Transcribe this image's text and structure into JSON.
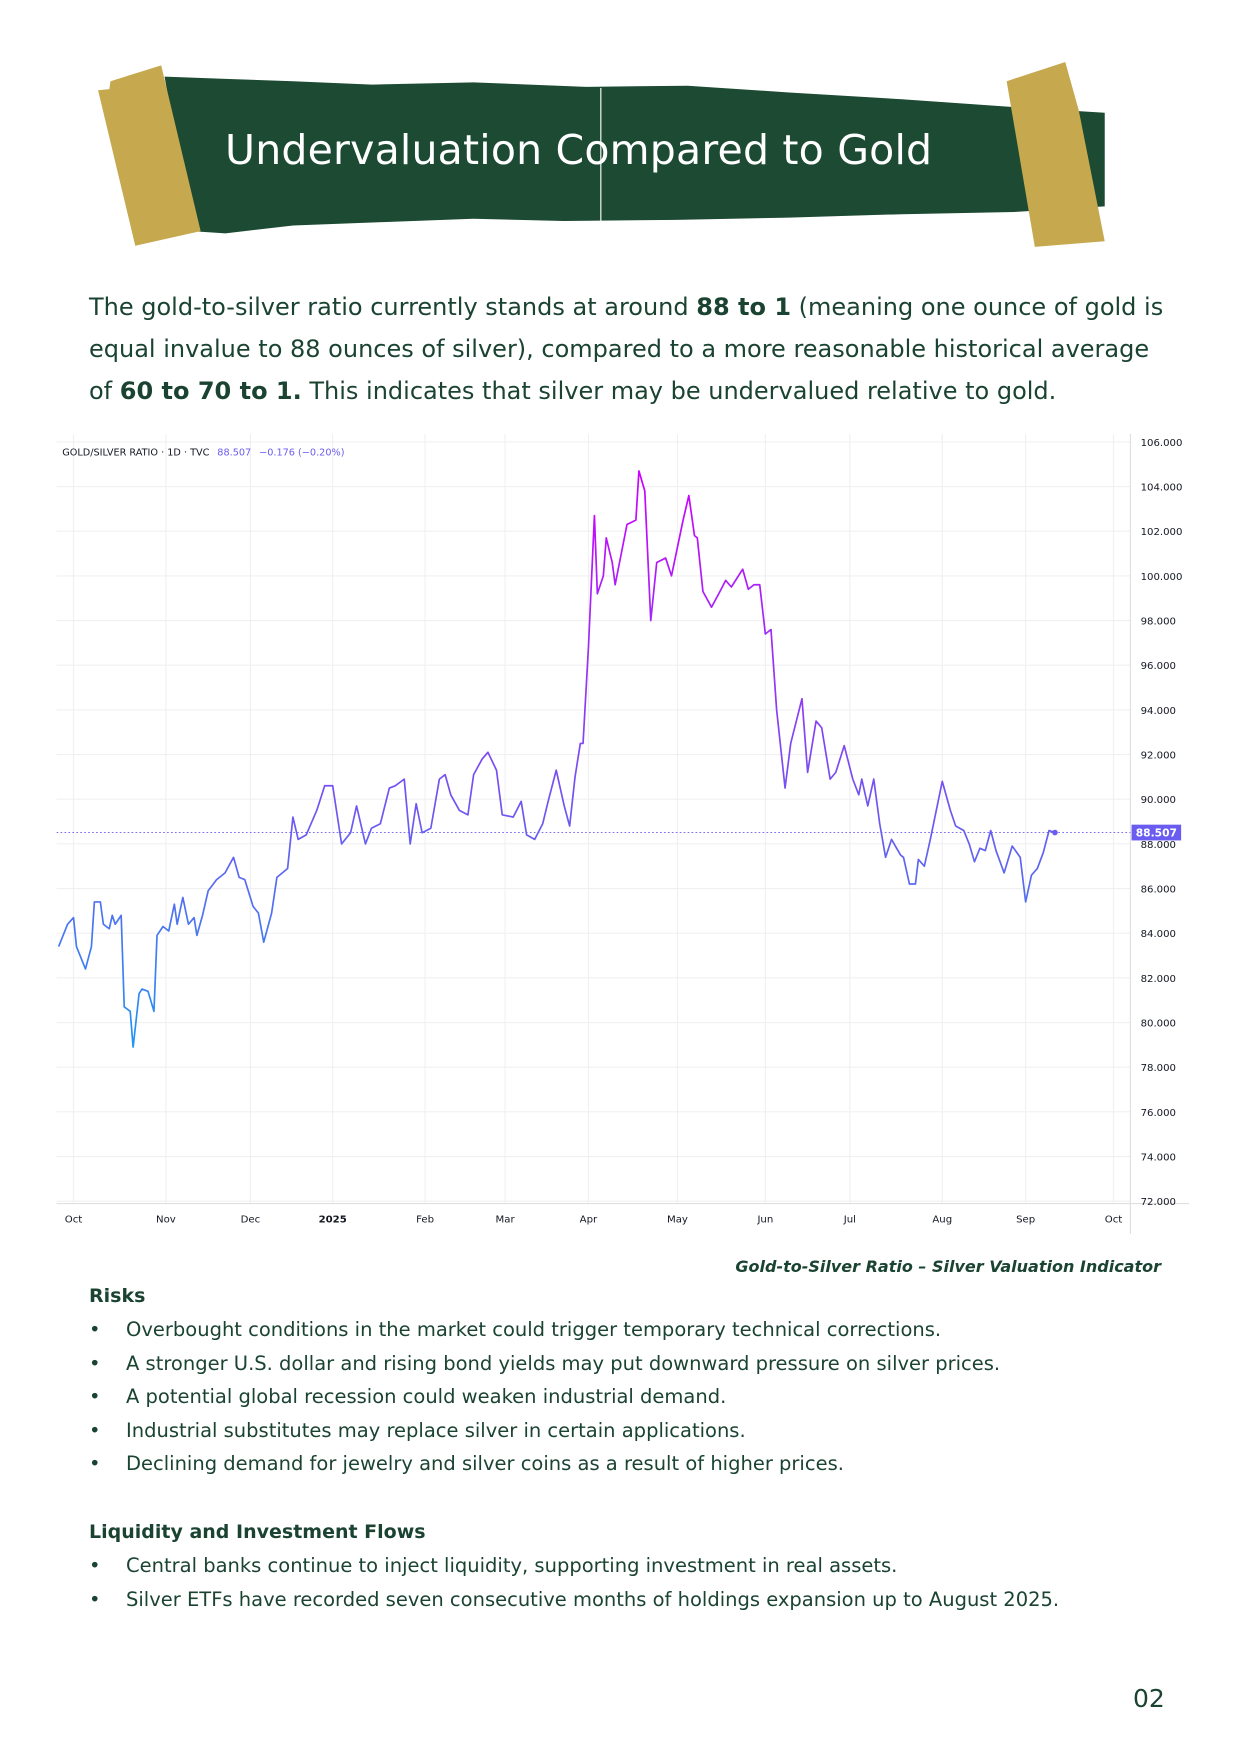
{
  "header": {
    "title": "Undervaluation Compared to Gold"
  },
  "colors": {
    "banner_green": "#1c4a33",
    "tape_gold": "#c6a94f",
    "text": "#1b4332",
    "last_price_badge": "#6a5cf0"
  },
  "intro": {
    "part1": "The gold-to-silver ratio currently stands at around ",
    "bold1": "88 to 1",
    "part2": " (meaning one ounce of gold is equal invalue to 88 ounces of silver), compared to a more reasonable historical average of ",
    "bold2": "60 to 70 to 1.",
    "part3": " This indicates that silver may be undervalued relative to gold."
  },
  "chart_data": {
    "type": "line",
    "title": "GOLD/SILVER RATIO · 1D · TVC",
    "last_value": "88.507",
    "change": "−0.176 (−0.20%)",
    "x_tick_labels": [
      "Oct",
      "Nov",
      "Dec",
      "2025",
      "Feb",
      "Mar",
      "Apr",
      "May",
      "Jun",
      "Jul",
      "Aug",
      "Sep",
      "Oct"
    ],
    "y_tick_labels": [
      "106.000",
      "104.000",
      "102.000",
      "100.000",
      "98.000",
      "96.000",
      "94.000",
      "92.000",
      "90.000",
      "88.000",
      "86.000",
      "84.000",
      "82.000",
      "80.000",
      "78.000",
      "76.000",
      "74.000",
      "72.000"
    ],
    "ylim": [
      72,
      106
    ],
    "y_axis_position": "right",
    "grid": true,
    "last_price_line": 88.507,
    "series": [
      {
        "points": [
          [
            "2024-09-26",
            83.4
          ],
          [
            "2024-09-29",
            84.4
          ],
          [
            "2024-10-01",
            84.7
          ],
          [
            "2024-10-02",
            83.4
          ],
          [
            "2024-10-05",
            82.4
          ],
          [
            "2024-10-07",
            83.4
          ],
          [
            "2024-10-08",
            85.4
          ],
          [
            "2024-10-10",
            85.4
          ],
          [
            "2024-10-11",
            84.4
          ],
          [
            "2024-10-13",
            84.2
          ],
          [
            "2024-10-14",
            84.8
          ],
          [
            "2024-10-15",
            84.4
          ],
          [
            "2024-10-17",
            84.8
          ],
          [
            "2024-10-18",
            80.7
          ],
          [
            "2024-10-20",
            80.5
          ],
          [
            "2024-10-21",
            78.9
          ],
          [
            "2024-10-23",
            81.3
          ],
          [
            "2024-10-24",
            81.5
          ],
          [
            "2024-10-26",
            81.4
          ],
          [
            "2024-10-28",
            80.5
          ],
          [
            "2024-10-29",
            83.9
          ],
          [
            "2024-10-31",
            84.3
          ],
          [
            "2024-11-02",
            84.1
          ],
          [
            "2024-11-04",
            85.3
          ],
          [
            "2024-11-05",
            84.4
          ],
          [
            "2024-11-07",
            85.6
          ],
          [
            "2024-11-09",
            84.4
          ],
          [
            "2024-11-11",
            84.7
          ],
          [
            "2024-11-12",
            83.9
          ],
          [
            "2024-11-14",
            84.8
          ],
          [
            "2024-11-16",
            85.9
          ],
          [
            "2024-11-19",
            86.4
          ],
          [
            "2024-11-22",
            86.7
          ],
          [
            "2024-11-25",
            87.4
          ],
          [
            "2024-11-27",
            86.5
          ],
          [
            "2024-11-29",
            86.4
          ],
          [
            "2024-12-02",
            85.2
          ],
          [
            "2024-12-04",
            84.9
          ],
          [
            "2024-12-06",
            83.6
          ],
          [
            "2024-12-09",
            84.9
          ],
          [
            "2024-12-11",
            86.5
          ],
          [
            "2024-12-15",
            86.9
          ],
          [
            "2024-12-17",
            89.2
          ],
          [
            "2024-12-19",
            88.2
          ],
          [
            "2024-12-22",
            88.4
          ],
          [
            "2024-12-26",
            89.5
          ],
          [
            "2024-12-29",
            90.6
          ],
          [
            "2025-01-01",
            90.6
          ],
          [
            "2025-01-04",
            88.0
          ],
          [
            "2025-01-07",
            88.5
          ],
          [
            "2025-01-09",
            89.7
          ],
          [
            "2025-01-12",
            88.0
          ],
          [
            "2025-01-14",
            88.7
          ],
          [
            "2025-01-17",
            88.9
          ],
          [
            "2025-01-20",
            90.5
          ],
          [
            "2025-01-22",
            90.6
          ],
          [
            "2025-01-25",
            90.9
          ],
          [
            "2025-01-27",
            88.0
          ],
          [
            "2025-01-29",
            89.8
          ],
          [
            "2025-01-31",
            88.5
          ],
          [
            "2025-02-03",
            88.7
          ],
          [
            "2025-02-06",
            90.9
          ],
          [
            "2025-02-08",
            91.1
          ],
          [
            "2025-02-10",
            90.2
          ],
          [
            "2025-02-13",
            89.5
          ],
          [
            "2025-02-16",
            89.3
          ],
          [
            "2025-02-18",
            91.1
          ],
          [
            "2025-02-21",
            91.8
          ],
          [
            "2025-02-23",
            92.1
          ],
          [
            "2025-02-26",
            91.3
          ],
          [
            "2025-02-28",
            89.3
          ],
          [
            "2025-03-04",
            89.2
          ],
          [
            "2025-03-07",
            89.9
          ],
          [
            "2025-03-09",
            88.4
          ],
          [
            "2025-03-12",
            88.2
          ],
          [
            "2025-03-15",
            88.9
          ],
          [
            "2025-03-17",
            89.9
          ],
          [
            "2025-03-20",
            91.3
          ],
          [
            "2025-03-23",
            89.7
          ],
          [
            "2025-03-25",
            88.8
          ],
          [
            "2025-03-27",
            91.0
          ],
          [
            "2025-03-29",
            92.5
          ],
          [
            "2025-03-30",
            92.5
          ],
          [
            "2025-04-01",
            96.8
          ],
          [
            "2025-04-03",
            102.7
          ],
          [
            "2025-04-04",
            99.2
          ],
          [
            "2025-04-06",
            100.0
          ],
          [
            "2025-04-07",
            101.7
          ],
          [
            "2025-04-09",
            100.6
          ],
          [
            "2025-04-10",
            99.6
          ],
          [
            "2025-04-14",
            102.3
          ],
          [
            "2025-04-17",
            102.5
          ],
          [
            "2025-04-18",
            104.7
          ],
          [
            "2025-04-20",
            103.8
          ],
          [
            "2025-04-22",
            98.0
          ],
          [
            "2025-04-24",
            100.6
          ],
          [
            "2025-04-27",
            100.8
          ],
          [
            "2025-04-29",
            100.0
          ],
          [
            "2025-05-03",
            102.5
          ],
          [
            "2025-05-05",
            103.6
          ],
          [
            "2025-05-07",
            101.8
          ],
          [
            "2025-05-08",
            101.7
          ],
          [
            "2025-05-10",
            99.3
          ],
          [
            "2025-05-13",
            98.6
          ],
          [
            "2025-05-16",
            99.3
          ],
          [
            "2025-05-18",
            99.8
          ],
          [
            "2025-05-20",
            99.5
          ],
          [
            "2025-05-24",
            100.3
          ],
          [
            "2025-05-26",
            99.4
          ],
          [
            "2025-05-28",
            99.6
          ],
          [
            "2025-05-30",
            99.6
          ],
          [
            "2025-06-01",
            97.4
          ],
          [
            "2025-06-03",
            97.6
          ],
          [
            "2025-06-05",
            94.0
          ],
          [
            "2025-06-08",
            90.5
          ],
          [
            "2025-06-10",
            92.5
          ],
          [
            "2025-06-14",
            94.5
          ],
          [
            "2025-06-16",
            91.2
          ],
          [
            "2025-06-19",
            93.5
          ],
          [
            "2025-06-21",
            93.2
          ],
          [
            "2025-06-24",
            90.9
          ],
          [
            "2025-06-26",
            91.2
          ],
          [
            "2025-06-29",
            92.4
          ],
          [
            "2025-07-02",
            90.9
          ],
          [
            "2025-07-04",
            90.2
          ],
          [
            "2025-07-05",
            90.9
          ],
          [
            "2025-07-07",
            89.7
          ],
          [
            "2025-07-09",
            90.9
          ],
          [
            "2025-07-11",
            88.9
          ],
          [
            "2025-07-13",
            87.4
          ],
          [
            "2025-07-15",
            88.2
          ],
          [
            "2025-07-18",
            87.5
          ],
          [
            "2025-07-19",
            87.4
          ],
          [
            "2025-07-21",
            86.2
          ],
          [
            "2025-07-23",
            86.2
          ],
          [
            "2025-07-24",
            87.3
          ],
          [
            "2025-07-26",
            87.0
          ],
          [
            "2025-07-28",
            88.2
          ],
          [
            "2025-08-01",
            90.8
          ],
          [
            "2025-08-04",
            89.5
          ],
          [
            "2025-08-06",
            88.8
          ],
          [
            "2025-08-09",
            88.6
          ],
          [
            "2025-08-11",
            88.0
          ],
          [
            "2025-08-13",
            87.2
          ],
          [
            "2025-08-15",
            87.8
          ],
          [
            "2025-08-17",
            87.7
          ],
          [
            "2025-08-19",
            88.6
          ],
          [
            "2025-08-21",
            87.7
          ],
          [
            "2025-08-24",
            86.7
          ],
          [
            "2025-08-27",
            87.9
          ],
          [
            "2025-08-30",
            87.4
          ],
          [
            "2025-09-01",
            85.4
          ],
          [
            "2025-09-03",
            86.6
          ],
          [
            "2025-09-05",
            86.9
          ],
          [
            "2025-09-07",
            87.6
          ],
          [
            "2025-09-09",
            88.6
          ],
          [
            "2025-09-11",
            88.507
          ]
        ]
      }
    ]
  },
  "caption": "Gold-to-Silver Ratio – Silver Valuation Indicator",
  "risks": {
    "heading": "Risks",
    "bullet": "•",
    "items": [
      "Overbought conditions in the market could trigger temporary technical corrections.",
      "A stronger U.S. dollar and rising bond yields may put downward pressure on silver prices.",
      "A potential global recession could weaken industrial demand.",
      "Industrial substitutes may replace silver in certain applications.",
      "Declining demand for jewelry and silver coins as a result of higher prices."
    ]
  },
  "liquidity": {
    "heading": "Liquidity and Investment Flows",
    "items": [
      "Central banks continue to inject liquidity, supporting investment in real assets.",
      "Silver ETFs have recorded seven consecutive months of holdings expansion up to August 2025."
    ]
  },
  "page_number": "02"
}
